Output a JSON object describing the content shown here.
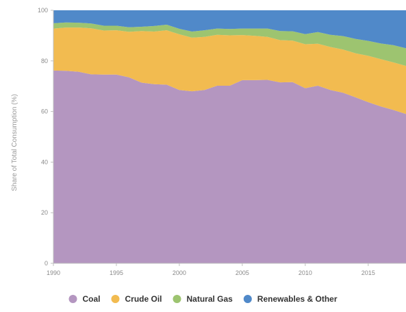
{
  "chart_data": {
    "type": "area",
    "stacked": true,
    "title": "",
    "xlabel": "",
    "ylabel": "Share of Total Consumption (%)",
    "xlim": [
      1990,
      2018
    ],
    "ylim": [
      0,
      100
    ],
    "xticks": [
      1990,
      1995,
      2000,
      2005,
      2010,
      2015
    ],
    "yticks": [
      0,
      20,
      40,
      60,
      80,
      100
    ],
    "grid": false,
    "legend_position": "bottom",
    "x": [
      1990,
      1991,
      1992,
      1993,
      1994,
      1995,
      1996,
      1997,
      1998,
      1999,
      2000,
      2001,
      2002,
      2003,
      2004,
      2005,
      2006,
      2007,
      2008,
      2009,
      2010,
      2011,
      2012,
      2013,
      2014,
      2015,
      2016,
      2017,
      2018
    ],
    "series": [
      {
        "name": "Coal",
        "color": "#b496c0",
        "values": [
          76.2,
          76.1,
          75.7,
          74.7,
          74.6,
          74.6,
          73.5,
          71.4,
          70.8,
          70.6,
          68.5,
          68.0,
          68.5,
          70.2,
          70.2,
          72.4,
          72.4,
          72.5,
          71.5,
          71.6,
          69.2,
          70.2,
          68.5,
          67.4,
          65.6,
          63.7,
          62.0,
          60.6,
          59.0
        ]
      },
      {
        "name": "Crude Oil",
        "color": "#f2bb50",
        "values": [
          16.6,
          17.1,
          17.5,
          18.2,
          17.4,
          17.5,
          18.0,
          20.4,
          20.8,
          21.5,
          22.0,
          21.2,
          21.0,
          20.1,
          19.9,
          17.8,
          17.5,
          17.0,
          16.7,
          16.4,
          17.4,
          16.6,
          17.0,
          17.1,
          17.4,
          18.3,
          18.7,
          18.8,
          19.0
        ]
      },
      {
        "name": "Natural Gas",
        "color": "#9dc470",
        "values": [
          2.1,
          2.0,
          1.9,
          1.9,
          1.9,
          1.8,
          1.8,
          1.7,
          2.2,
          2.2,
          2.2,
          2.4,
          2.6,
          2.5,
          2.5,
          2.6,
          2.9,
          3.3,
          3.6,
          3.7,
          4.0,
          4.6,
          4.8,
          5.3,
          5.7,
          5.9,
          6.2,
          6.8,
          7.0
        ]
      },
      {
        "name": "Renewables & Other",
        "color": "#5089c9",
        "values": [
          5.1,
          4.8,
          4.9,
          5.2,
          6.1,
          6.1,
          6.7,
          6.5,
          6.2,
          5.7,
          7.3,
          8.4,
          7.9,
          7.2,
          7.4,
          7.2,
          7.2,
          7.2,
          8.2,
          8.3,
          9.4,
          8.6,
          9.7,
          10.2,
          11.3,
          12.1,
          13.1,
          13.8,
          15.0
        ]
      }
    ]
  }
}
